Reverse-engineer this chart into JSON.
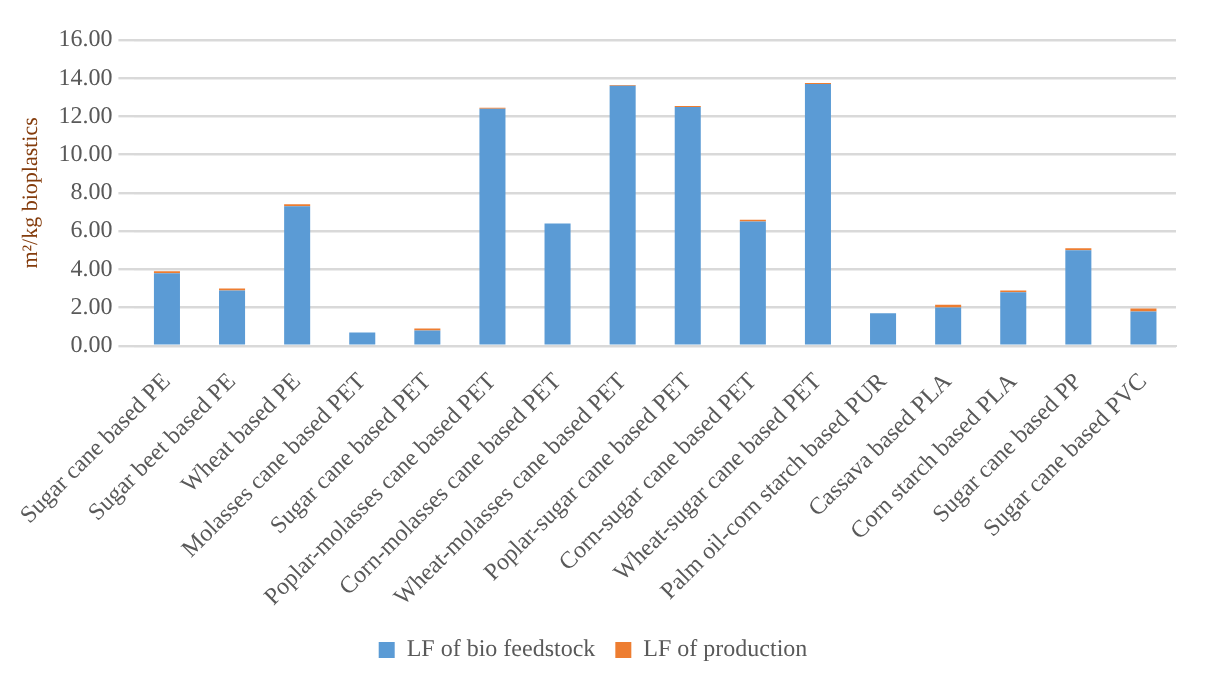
{
  "chart_data": {
    "type": "bar",
    "stacked": true,
    "ylabel": "m²/kg bioplastics",
    "categories": [
      "Sugar cane based PE",
      "Sugar beet based PE",
      "Wheat based PE",
      "Molasses cane based PET",
      "Sugar cane based PET",
      "Poplar-molasses cane based PET",
      "Corn-molasses cane based PET",
      "Wheat-molasses cane based PET",
      "Poplar-sugar cane based PET",
      "Corn-sugar cane based PET",
      "Wheat-sugar cane based PET",
      "Palm oil-corn starch based PUR",
      "Cassava based PLA",
      "Corn starch based PLA",
      "Sugar cane based PP",
      "Sugar cane based PVC"
    ],
    "series": [
      {
        "name": "LF of bio feedstock",
        "color": "#5b9bd5",
        "values": [
          3.8,
          2.9,
          7.3,
          0.7,
          0.8,
          12.4,
          6.4,
          13.6,
          12.5,
          6.5,
          13.7,
          1.7,
          2.0,
          2.8,
          5.0,
          1.8
        ]
      },
      {
        "name": "LF of production",
        "color": "#ed7d31",
        "values": [
          0.1,
          0.1,
          0.1,
          null,
          0.1,
          0.05,
          null,
          0.05,
          0.05,
          0.1,
          0.05,
          null,
          0.15,
          0.1,
          0.1,
          0.15
        ]
      }
    ],
    "ylim": [
      0,
      16
    ],
    "yticks": [
      {
        "value": 0,
        "label": "0.00"
      },
      {
        "value": 2,
        "label": "2.00"
      },
      {
        "value": 4,
        "label": "4.00"
      },
      {
        "value": 6,
        "label": "6.00"
      },
      {
        "value": 8,
        "label": "8.00"
      },
      {
        "value": 10,
        "label": "10.00"
      },
      {
        "value": 12,
        "label": "12.00"
      },
      {
        "value": 14,
        "label": "14.00"
      },
      {
        "value": 16,
        "label": "16.00"
      }
    ],
    "grid": "y",
    "legend": "bottom"
  }
}
